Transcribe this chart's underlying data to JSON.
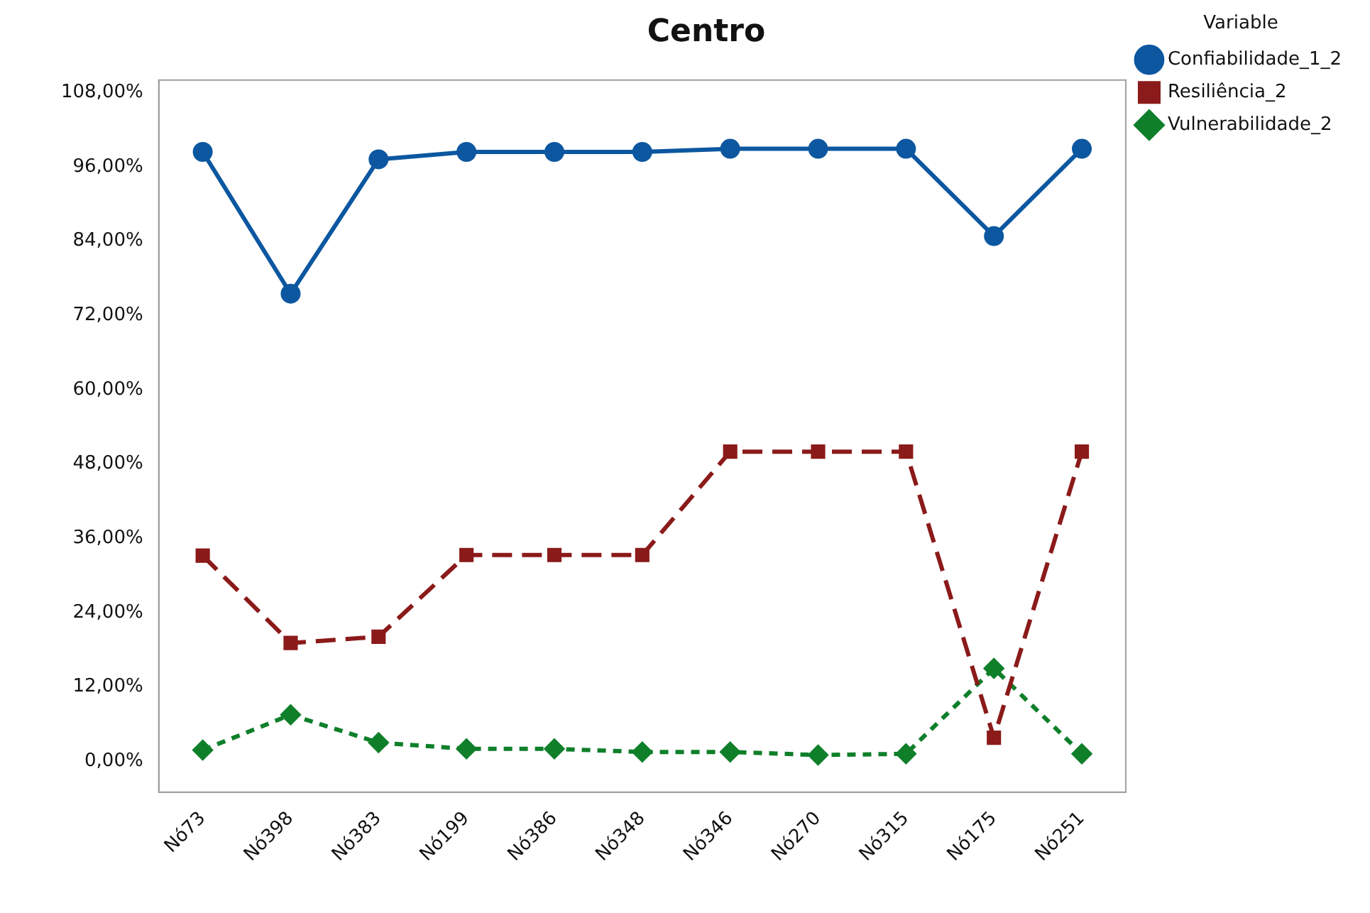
{
  "chart_data": {
    "type": "line",
    "title": "Centro",
    "legend_title": "Variable",
    "legend": "top right",
    "grid": false,
    "categories": [
      "Nó73",
      "Nó398",
      "Nó383",
      "Nó199",
      "Nó386",
      "Nó348",
      "Nó346",
      "Nó270",
      "Nó315",
      "Nó175",
      "Nó251"
    ],
    "ylim": [
      -5,
      110
    ],
    "yticks": [
      {
        "value": 0,
        "label": "0,00%"
      },
      {
        "value": 12,
        "label": "12,00%"
      },
      {
        "value": 24,
        "label": "24,00%"
      },
      {
        "value": 36,
        "label": "36,00%"
      },
      {
        "value": 48,
        "label": "48,00%"
      },
      {
        "value": 60,
        "label": "60,00%"
      },
      {
        "value": 72,
        "label": "72,00%"
      },
      {
        "value": 84,
        "label": "84,00%"
      },
      {
        "value": 96,
        "label": "96,00%"
      },
      {
        "value": 108,
        "label": "108,00%"
      }
    ],
    "series": [
      {
        "name": "Confiabilidade_1_2",
        "color": "#0c57a0",
        "marker": "circle",
        "line_style": "solid",
        "values": [
          98.4,
          75.5,
          97.2,
          98.4,
          98.4,
          98.4,
          98.9,
          98.9,
          98.9,
          84.8,
          98.9
        ]
      },
      {
        "name": "Resiliência_2",
        "color": "#8b1a1a",
        "marker": "square",
        "line_style": "dashed",
        "values": [
          33.2,
          19.1,
          20.1,
          33.3,
          33.3,
          33.3,
          50,
          50,
          50,
          3.8,
          50
        ]
      },
      {
        "name": "Vulnerabilidade_2",
        "color": "#0f7f2a",
        "marker": "diamond",
        "line_style": "dotted",
        "values": [
          1.8,
          7.5,
          3,
          2,
          2,
          1.5,
          1.5,
          1,
          1.2,
          15,
          1.2
        ]
      }
    ]
  }
}
